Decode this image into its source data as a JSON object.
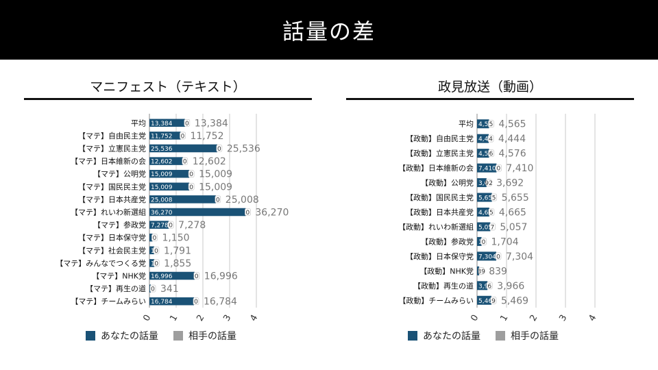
{
  "title": "話量の差",
  "colors": {
    "yours": "#1a5276",
    "theirs": "#9e9e9e"
  },
  "legend": {
    "yours": "あなたの話量",
    "theirs": "相手の話量"
  },
  "chart_data": [
    {
      "type": "bar",
      "title": "マニフェスト（テキスト）",
      "orientation": "horizontal",
      "categories": [
        "平均",
        "【マテ】自由民主党",
        "【マテ】立憲民主党",
        "【マテ】日本維新の会",
        "【マテ】公明党",
        "【マテ】国民民主党",
        "【マテ】日本共産党",
        "【マテ】れいわ新選組",
        "【マテ】参政党",
        "【マテ】日本保守党",
        "【マテ】社会民主党",
        "【マテ】みんなでつくる党",
        "【マテ】NHK党",
        "【マテ】再生の道",
        "【マテ】チームみらい"
      ],
      "series": [
        {
          "name": "あなたの話量",
          "values": [
            13384,
            11752,
            25536,
            12602,
            15009,
            15009,
            25008,
            36270,
            7278,
            1150,
            1791,
            1855,
            16996,
            341,
            16784
          ],
          "labels": [
            "13,384",
            "11,752",
            "25,536",
            "12,602",
            "15,009",
            "15,009",
            "25,008",
            "36,270",
            "7,278",
            "1,150",
            "1,791",
            "1,855",
            "16,996",
            "341",
            "16,784"
          ]
        },
        {
          "name": "相手の話量",
          "values": [
            0,
            0,
            0,
            0,
            0,
            0,
            0,
            0,
            0,
            0,
            0,
            0,
            0,
            0,
            0
          ],
          "labels": [
            "0",
            "0",
            "0",
            "0",
            "0",
            "0",
            "0",
            "0",
            "0",
            "0",
            "0",
            "0",
            "0",
            "0",
            "0"
          ]
        }
      ],
      "totals": [
        "13,384",
        "11,752",
        "25,536",
        "12,602",
        "15,009",
        "15,009",
        "25,008",
        "36,270",
        "7,278",
        "1,150",
        "1,791",
        "1,855",
        "16,996",
        "341",
        "16,784"
      ],
      "xticks": [
        "0",
        "1",
        "2",
        "3",
        "4"
      ],
      "grid": true
    },
    {
      "type": "bar",
      "title": "政見放送（動画）",
      "orientation": "horizontal",
      "categories": [
        "平均",
        "【政動】自由民主党",
        "【政動】立憲民主党",
        "【政動】日本維新の会",
        "【政動】公明党",
        "【政動】国民民主党",
        "【政動】日本共産党",
        "【政動】れいわ新選組",
        "【政動】参政党",
        "【政動】日本保守党",
        "【政動】NHK党",
        "【政動】再生の道",
        "【政動】チームみらい"
      ],
      "series": [
        {
          "name": "あなたの話量",
          "values": [
            4560,
            4440,
            4570,
            7410,
            3600,
            5650,
            4660,
            5050,
            1704,
            7304,
            800,
            3960,
            5460
          ],
          "labels": [
            "4,560",
            "4,440",
            "4,570",
            "7,410",
            "3,600",
            "5,650",
            "4,660",
            "5,050",
            "1,704",
            "7,304",
            "800",
            "3,960",
            "5,460"
          ]
        },
        {
          "name": "相手の話量",
          "values": [
            5,
            4,
            6,
            0,
            92,
            5,
            5,
            7,
            0,
            0,
            39,
            6,
            9
          ],
          "labels": [
            "5",
            "4",
            "6",
            "0",
            "92",
            "5",
            "5",
            "7",
            "0",
            "0",
            "39",
            "6",
            "9"
          ]
        }
      ],
      "totals": [
        "4,565",
        "4,444",
        "4,576",
        "7,410",
        "3,692",
        "5,655",
        "4,665",
        "5,057",
        "1,704",
        "7,304",
        "839",
        "3,966",
        "5,469"
      ],
      "xticks": [
        "0",
        "1",
        "2",
        "3",
        "4"
      ],
      "grid": true
    }
  ]
}
